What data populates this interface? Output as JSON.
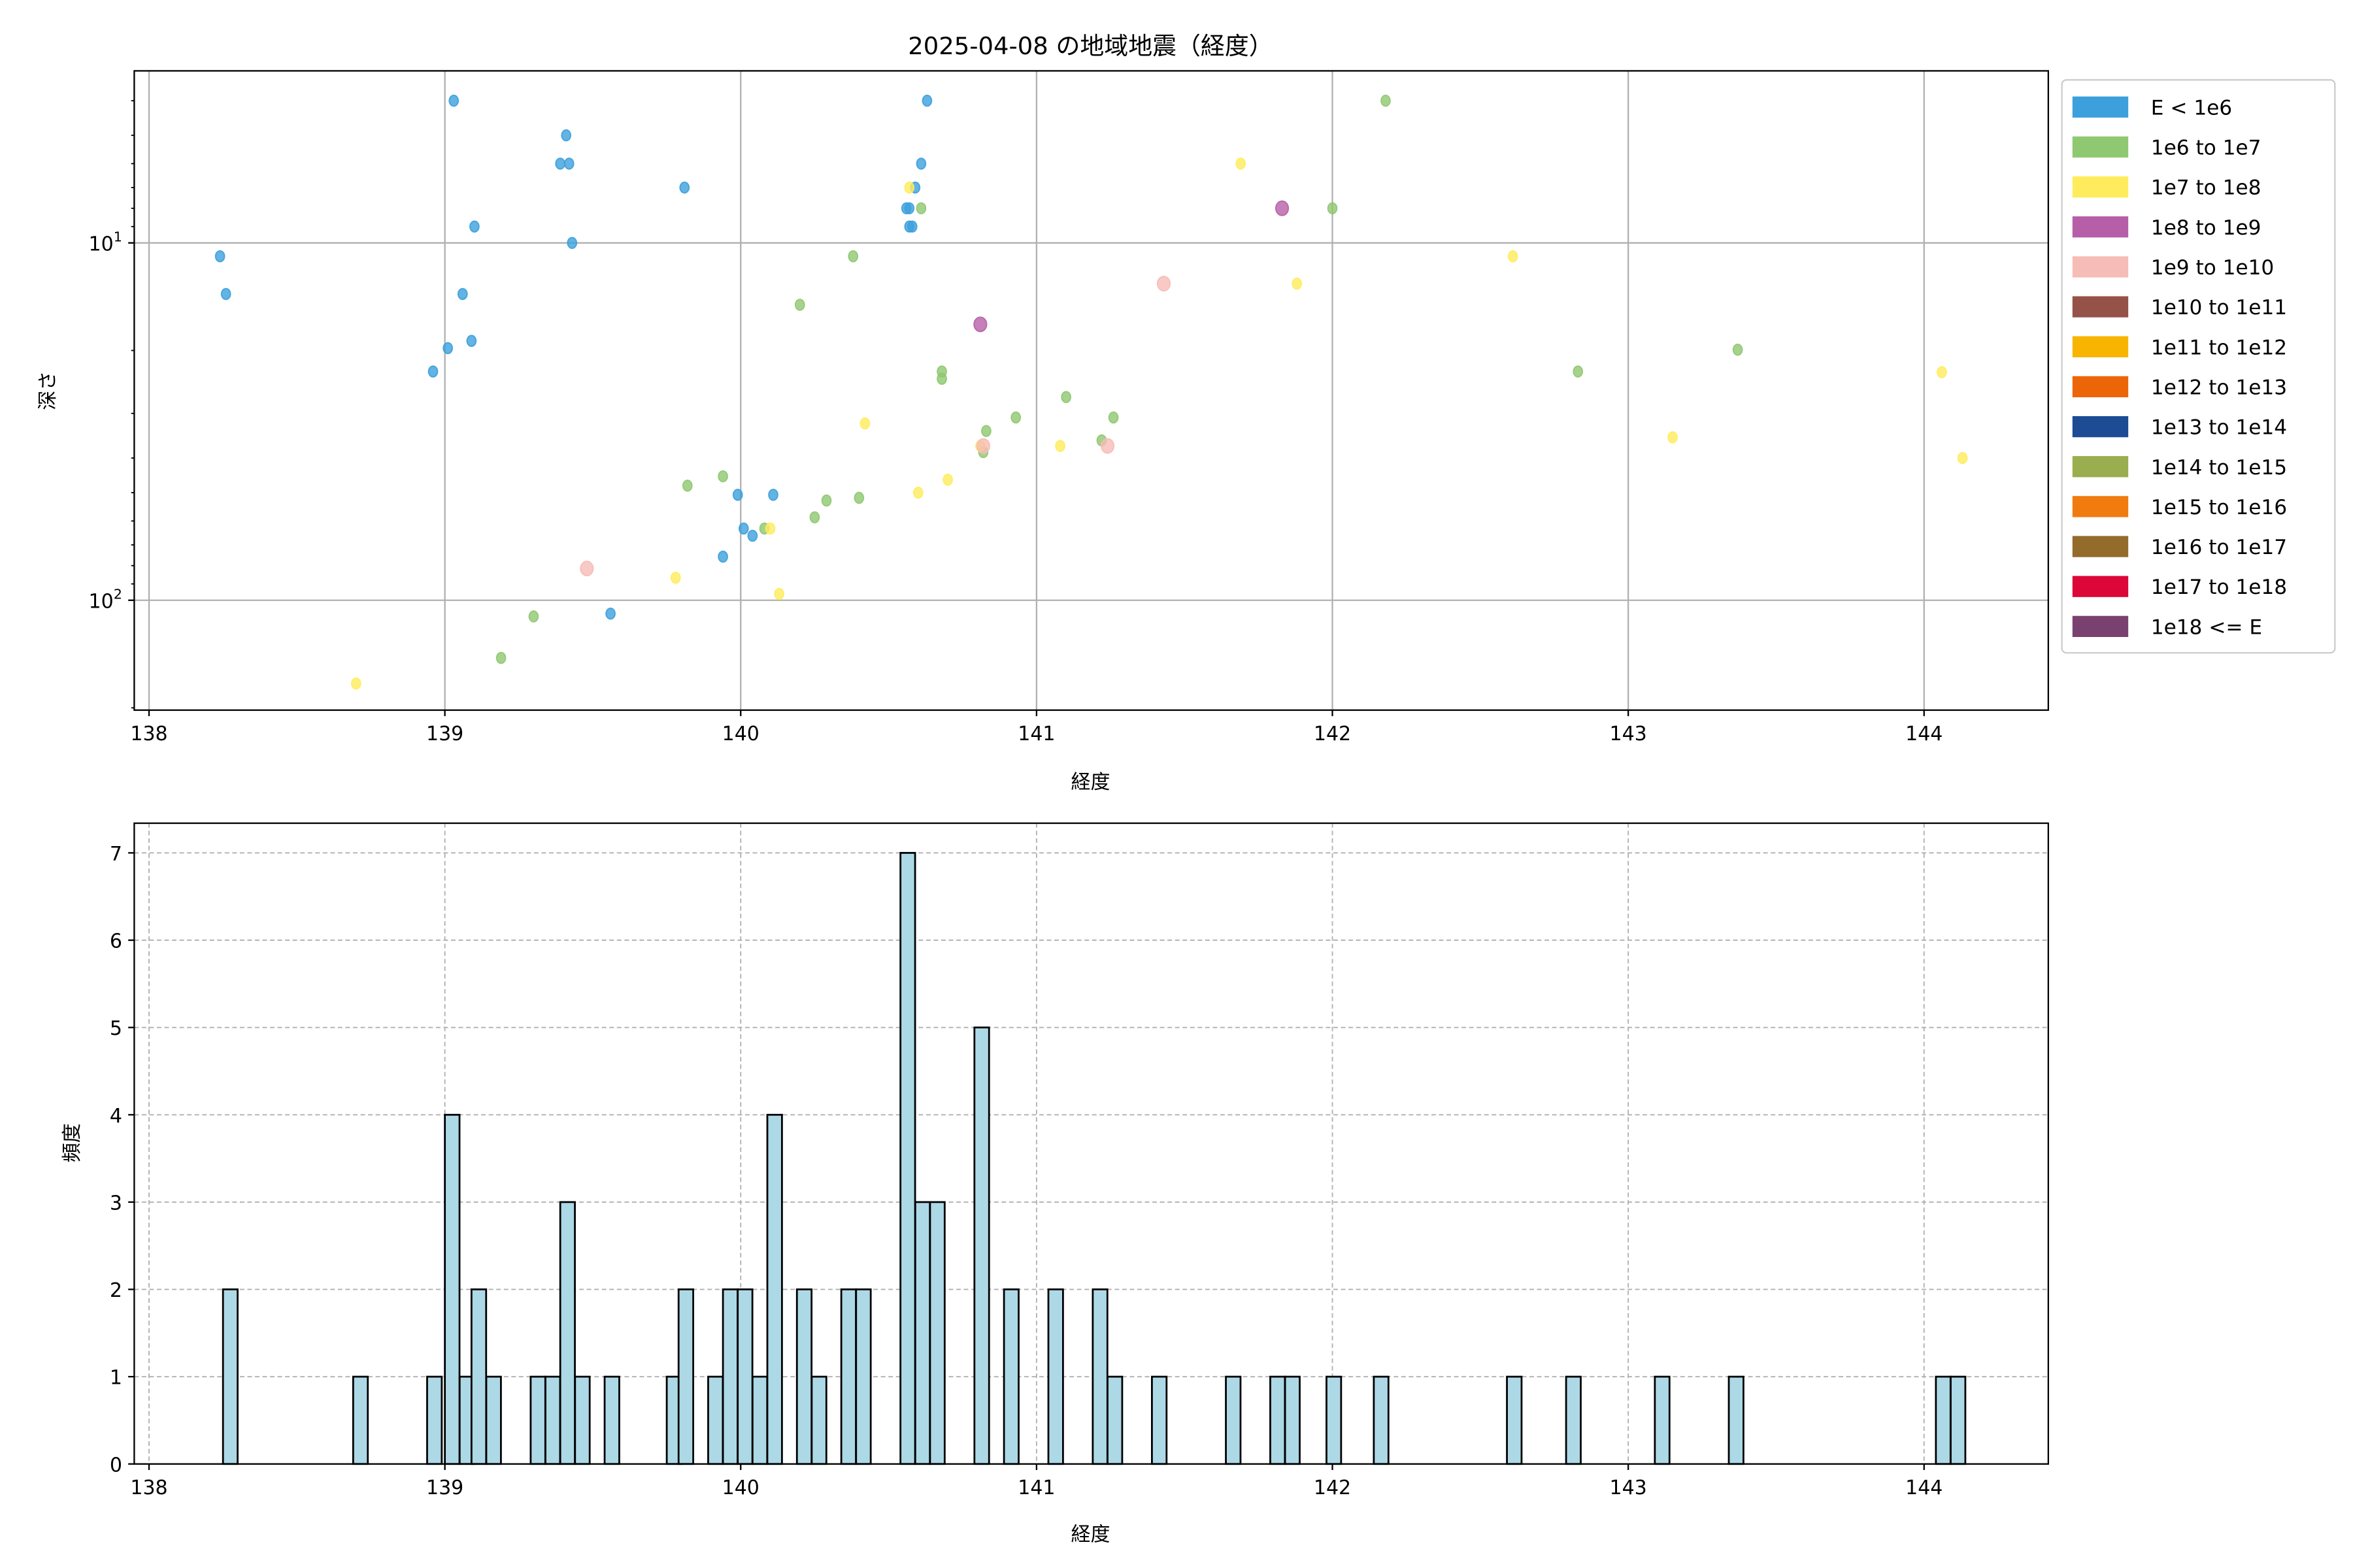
{
  "chart_data": [
    {
      "type": "scatter",
      "title": "2025-04-08 の地域地震（経度）",
      "xlabel": "経度",
      "ylabel": "深さ",
      "xlim": [
        137.95,
        144.42
      ],
      "ylim": [
        3.3,
        203
      ],
      "yscale": "log",
      "yinverted": true,
      "grid": true,
      "xticks": [
        138,
        139,
        140,
        141,
        142,
        143,
        144
      ],
      "yticks": [
        {
          "value": 10,
          "base": "10",
          "exp": "1"
        },
        {
          "value": 100,
          "base": "10",
          "exp": "2"
        }
      ],
      "legend_position": "outside-right",
      "legend": [
        {
          "label": "E < 1e6",
          "color": "#3ca0dc"
        },
        {
          "label": "1e6 to 1e7",
          "color": "#8fc870"
        },
        {
          "label": "1e7 to 1e8",
          "color": "#ffec5c"
        },
        {
          "label": "1e8 to 1e9",
          "color": "#b65fa8"
        },
        {
          "label": "1e9 to 1e10",
          "color": "#f6bcb6"
        },
        {
          "label": "1e10 to 1e11",
          "color": "#955248"
        },
        {
          "label": "1e11 to 1e12",
          "color": "#f7b500"
        },
        {
          "label": "1e12 to 1e13",
          "color": "#ec6508"
        },
        {
          "label": "1e13 to 1e14",
          "color": "#1d4b94"
        },
        {
          "label": "1e14 to 1e15",
          "color": "#9aad4f"
        },
        {
          "label": "1e15 to 1e16",
          "color": "#f17b0e"
        },
        {
          "label": "1e16 to 1e17",
          "color": "#936b2b"
        },
        {
          "label": "1e17 to 1e18",
          "color": "#dc0738"
        },
        {
          "label": "1e18 <= E",
          "color": "#7a4170"
        }
      ],
      "points": [
        [
          138.24,
          10.9,
          0
        ],
        [
          138.26,
          13.9,
          0
        ],
        [
          139.03,
          4.0,
          0
        ],
        [
          139.41,
          5.0,
          0
        ],
        [
          139.39,
          6.0,
          0
        ],
        [
          139.42,
          6.0,
          0
        ],
        [
          139.1,
          9.0,
          0
        ],
        [
          139.43,
          10.0,
          0
        ],
        [
          139.81,
          7.0,
          0
        ],
        [
          139.06,
          13.9,
          0
        ],
        [
          139.09,
          18.8,
          0
        ],
        [
          139.01,
          19.7,
          0
        ],
        [
          138.96,
          22.9,
          0
        ],
        [
          140.63,
          4.0,
          0
        ],
        [
          140.61,
          6.0,
          0
        ],
        [
          140.59,
          7.0,
          0
        ],
        [
          140.56,
          8.0,
          0
        ],
        [
          140.57,
          8.0,
          0
        ],
        [
          140.57,
          9.0,
          0
        ],
        [
          140.58,
          9.0,
          0
        ],
        [
          139.99,
          50.7,
          0
        ],
        [
          140.11,
          50.7,
          0
        ],
        [
          140.01,
          63,
          0
        ],
        [
          140.04,
          66,
          0
        ],
        [
          139.94,
          75.5,
          0
        ],
        [
          139.56,
          109,
          0
        ],
        [
          142.18,
          4.0,
          1
        ],
        [
          142.0,
          8.0,
          1
        ],
        [
          140.61,
          8.0,
          1
        ],
        [
          140.38,
          10.9,
          1
        ],
        [
          140.2,
          14.9,
          1
        ],
        [
          140.68,
          22.9,
          1
        ],
        [
          140.68,
          24.0,
          1
        ],
        [
          141.1,
          27,
          1
        ],
        [
          140.93,
          30.8,
          1
        ],
        [
          141.26,
          30.8,
          1
        ],
        [
          140.83,
          33.6,
          1
        ],
        [
          141.22,
          35.7,
          1
        ],
        [
          140.82,
          38.5,
          1
        ],
        [
          142.83,
          22.9,
          1
        ],
        [
          143.37,
          19.9,
          1
        ],
        [
          139.94,
          45,
          1
        ],
        [
          139.82,
          47.8,
          1
        ],
        [
          140.29,
          52.6,
          1
        ],
        [
          140.25,
          58.6,
          1
        ],
        [
          140.4,
          51.7,
          1
        ],
        [
          140.08,
          63,
          1
        ],
        [
          139.3,
          111,
          1
        ],
        [
          139.19,
          145,
          1
        ],
        [
          141.69,
          6.0,
          2
        ],
        [
          140.57,
          7.0,
          2
        ],
        [
          142.61,
          10.9,
          2
        ],
        [
          141.88,
          13,
          2
        ],
        [
          140.42,
          32,
          2
        ],
        [
          141.08,
          37,
          2
        ],
        [
          140.7,
          46,
          2
        ],
        [
          140.6,
          50,
          2
        ],
        [
          140.1,
          63,
          2
        ],
        [
          139.78,
          86.5,
          2
        ],
        [
          140.13,
          96,
          2
        ],
        [
          138.7,
          171,
          2
        ],
        [
          143.15,
          35,
          2
        ],
        [
          144.06,
          23,
          2
        ],
        [
          144.13,
          40,
          2
        ],
        [
          140.81,
          37,
          2
        ],
        [
          141.83,
          8.0,
          3
        ],
        [
          140.81,
          16.9,
          3
        ],
        [
          141.43,
          13,
          4
        ],
        [
          139.48,
          81.5,
          4
        ],
        [
          140.82,
          37,
          4
        ],
        [
          141.24,
          37,
          4
        ]
      ]
    },
    {
      "type": "bar",
      "subtype": "histogram",
      "xlabel": "経度",
      "ylabel": "頻度",
      "xlim": [
        137.95,
        144.42
      ],
      "ylim": [
        0,
        7.34
      ],
      "xticks": [
        138,
        139,
        140,
        141,
        142,
        143,
        144
      ],
      "yticks": [
        0,
        1,
        2,
        3,
        4,
        5,
        6,
        7
      ],
      "grid": true,
      "bar_color": "#add8e6",
      "bin_width": 0.0495,
      "bins": [
        [
          138.25,
          2
        ],
        [
          138.69,
          1
        ],
        [
          138.94,
          1
        ],
        [
          139.0,
          4
        ],
        [
          139.05,
          1
        ],
        [
          139.09,
          2
        ],
        [
          139.14,
          1
        ],
        [
          139.29,
          1
        ],
        [
          139.34,
          1
        ],
        [
          139.39,
          3
        ],
        [
          139.44,
          1
        ],
        [
          139.54,
          1
        ],
        [
          139.75,
          1
        ],
        [
          139.79,
          2
        ],
        [
          139.89,
          1
        ],
        [
          139.94,
          2
        ],
        [
          139.99,
          2
        ],
        [
          140.04,
          1
        ],
        [
          140.09,
          4
        ],
        [
          140.19,
          2
        ],
        [
          140.24,
          1
        ],
        [
          140.34,
          2
        ],
        [
          140.39,
          2
        ],
        [
          140.54,
          7
        ],
        [
          140.59,
          3
        ],
        [
          140.64,
          3
        ],
        [
          140.79,
          5
        ],
        [
          140.89,
          2
        ],
        [
          141.04,
          2
        ],
        [
          141.19,
          2
        ],
        [
          141.24,
          1
        ],
        [
          141.39,
          1
        ],
        [
          141.64,
          1
        ],
        [
          141.79,
          1
        ],
        [
          141.84,
          1
        ],
        [
          141.98,
          1
        ],
        [
          142.14,
          1
        ],
        [
          142.59,
          1
        ],
        [
          142.79,
          1
        ],
        [
          143.09,
          1
        ],
        [
          143.34,
          1
        ],
        [
          144.04,
          1
        ],
        [
          144.09,
          1
        ]
      ]
    }
  ]
}
